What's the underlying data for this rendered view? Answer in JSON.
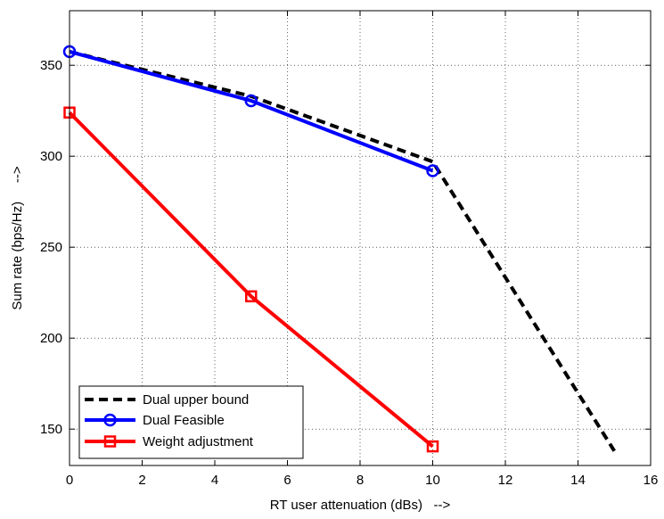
{
  "chart_data": {
    "type": "line",
    "title": "",
    "xlabel": "RT user attenuation (dBs)   -->",
    "ylabel": "Sum rate (bps/Hz)     -->",
    "xlim": [
      0,
      16
    ],
    "ylim": [
      130,
      380
    ],
    "x_ticks": [
      0,
      2,
      4,
      6,
      8,
      10,
      12,
      14,
      16
    ],
    "y_ticks": [
      150,
      200,
      250,
      300,
      350
    ],
    "grid": true,
    "legend_position": "bottom-left",
    "series": [
      {
        "name": "Dual upper bound",
        "color": "#000000",
        "style": "dashed",
        "marker": "none",
        "x": [
          0,
          5,
          10,
          15
        ],
        "y": [
          357.5,
          333,
          297,
          138
        ]
      },
      {
        "name": "Dual Feasible",
        "color": "#0000ff",
        "style": "solid",
        "marker": "circle",
        "x": [
          0,
          5,
          10
        ],
        "y": [
          357.5,
          330.5,
          292
        ]
      },
      {
        "name": "Weight adjustment",
        "color": "#ff0000",
        "style": "solid",
        "marker": "square",
        "x": [
          0,
          5,
          10
        ],
        "y": [
          324,
          223,
          140.5
        ]
      }
    ]
  }
}
